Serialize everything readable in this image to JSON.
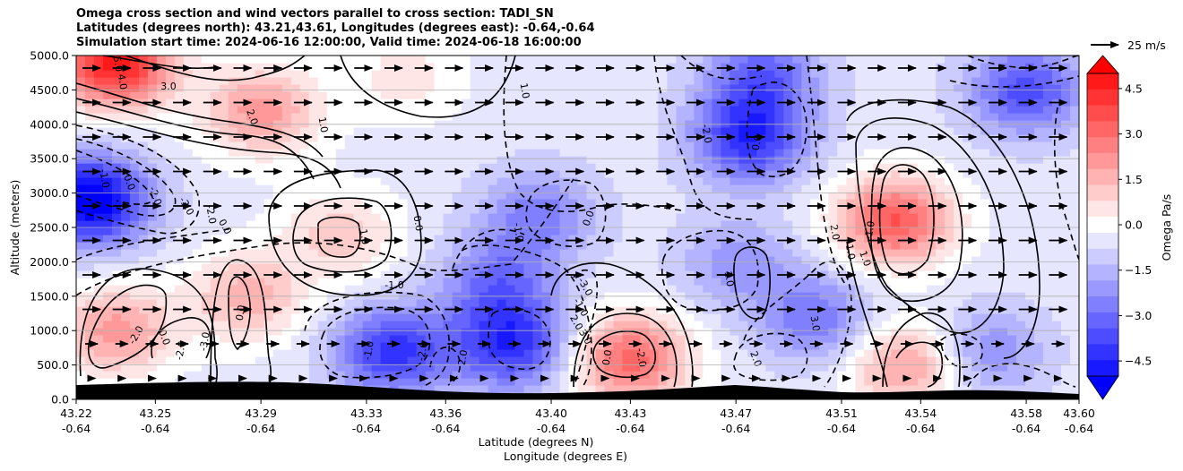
{
  "chart_data": {
    "type": "contour",
    "title": [
      "Omega cross section and wind vectors parallel to cross section: TADI_SN",
      "Latitudes (degrees north): 43.21,43.61, Longitudes (degrees east): -0.64,-0.64",
      "Simulation start time: 2024-06-16 12:00:00, Valid time: 2024-06-18 16:00:00"
    ],
    "xlabel": "Latitude (degrees N)",
    "xlabel2": "Longitude (degrees E)",
    "ylabel": "Altitude (meters)",
    "x_ticks_lat": [
      "43.22",
      "43.25",
      "43.29",
      "43.33",
      "43.36",
      "43.40",
      "43.43",
      "43.47",
      "43.51",
      "43.54",
      "43.58",
      "43.60"
    ],
    "x_ticks_lon": [
      "-0.64",
      "-0.64",
      "-0.64",
      "-0.64",
      "-0.64",
      "-0.64",
      "-0.64",
      "-0.64",
      "-0.64",
      "-0.64",
      "-0.64",
      "-0.64"
    ],
    "y_ticks": [
      "0.0",
      "500.0",
      "1000.0",
      "1500.0",
      "2000.0",
      "2500.0",
      "3000.0",
      "3500.0",
      "4000.0",
      "4500.0",
      "5000.0"
    ],
    "ylim": [
      0,
      5000
    ],
    "grid": "horizontal",
    "colorbar": {
      "label": "Omega Pa/s",
      "ticks": [
        "4.5",
        "3.0",
        "1.5",
        "0.0",
        "−1.5",
        "−3.0",
        "−4.5"
      ],
      "range": [
        -5,
        5
      ],
      "extend": "both",
      "colors": {
        "positive": "#ff0000",
        "neutral": "#ffffff",
        "negative": "#0000ff"
      }
    },
    "quiver_key": {
      "label": "25 m/s"
    },
    "contour_labels": [
      {
        "text": "5.0"
      },
      {
        "text": "4.0"
      },
      {
        "text": "3.0"
      },
      {
        "text": "2.0"
      },
      {
        "text": "1.0"
      },
      {
        "text": "0.0"
      },
      {
        "text": "-1.0"
      },
      {
        "text": "-2.0"
      },
      {
        "text": "-3.0"
      },
      {
        "text": "0.0"
      },
      {
        "text": "-2.0"
      },
      {
        "text": "1.0"
      },
      {
        "text": "0.0"
      },
      {
        "text": "-1.0"
      },
      {
        "text": "0.0"
      },
      {
        "text": "-2.0"
      },
      {
        "text": "-2.0"
      },
      {
        "text": "-3.0"
      },
      {
        "text": "0.0"
      },
      {
        "text": "-1.0"
      },
      {
        "text": "2.0"
      },
      {
        "text": "-2.0"
      },
      {
        "text": "1.0"
      },
      {
        "text": "-1.0"
      },
      {
        "text": "0.0"
      },
      {
        "text": "-3.0"
      },
      {
        "text": "-1.0"
      },
      {
        "text": "2.0"
      },
      {
        "text": "3.0"
      },
      {
        "text": "0.0"
      },
      {
        "text": "-2.0"
      },
      {
        "text": "-2.0"
      },
      {
        "text": "0.0"
      },
      {
        "text": "1.0"
      },
      {
        "text": "2.0"
      },
      {
        "text": "3.0"
      },
      {
        "text": "2.0"
      },
      {
        "text": "-1.0"
      },
      {
        "text": "1.0"
      },
      {
        "text": "-1.0"
      }
    ],
    "features": [
      {
        "name": "sink",
        "lat": 43.225,
        "alt": 2900,
        "value": -5.0
      },
      {
        "name": "rise",
        "lat": 43.235,
        "alt": 4900,
        "value": 5.0
      },
      {
        "name": "rise",
        "lat": 43.29,
        "alt": 4200,
        "value": 2.5
      },
      {
        "name": "rise",
        "lat": 43.235,
        "alt": 1000,
        "value": 2.5
      },
      {
        "name": "rise",
        "lat": 43.32,
        "alt": 2400,
        "value": 1.5
      },
      {
        "name": "rise",
        "lat": 43.285,
        "alt": 1500,
        "value": 2.0
      },
      {
        "name": "rise",
        "lat": 43.43,
        "alt": 600,
        "value": 3.5
      },
      {
        "name": "rise",
        "lat": 43.53,
        "alt": 2600,
        "value": 3.8
      },
      {
        "name": "rise",
        "lat": 43.535,
        "alt": 500,
        "value": 2.5
      },
      {
        "name": "rise",
        "lat": 43.345,
        "alt": 4700,
        "value": 1.0
      },
      {
        "name": "sink",
        "lat": 43.34,
        "alt": 700,
        "value": -3.5
      },
      {
        "name": "sink",
        "lat": 43.385,
        "alt": 800,
        "value": -3.5
      },
      {
        "name": "sink",
        "lat": 43.475,
        "alt": 3800,
        "value": -3.5
      },
      {
        "name": "sink",
        "lat": 43.48,
        "alt": 4700,
        "value": -2.5
      },
      {
        "name": "sink",
        "lat": 43.395,
        "alt": 2700,
        "value": -2.0
      },
      {
        "name": "sink",
        "lat": 43.58,
        "alt": 4500,
        "value": -3.0
      },
      {
        "name": "sink",
        "lat": 43.5,
        "alt": 1200,
        "value": -2.2
      },
      {
        "name": "sink",
        "lat": 43.565,
        "alt": 700,
        "value": -1.8
      },
      {
        "name": "sink",
        "lat": 43.38,
        "alt": 1700,
        "value": -2.2
      },
      {
        "name": "sink",
        "lat": 43.47,
        "alt": 2000,
        "value": -1.5
      }
    ]
  }
}
